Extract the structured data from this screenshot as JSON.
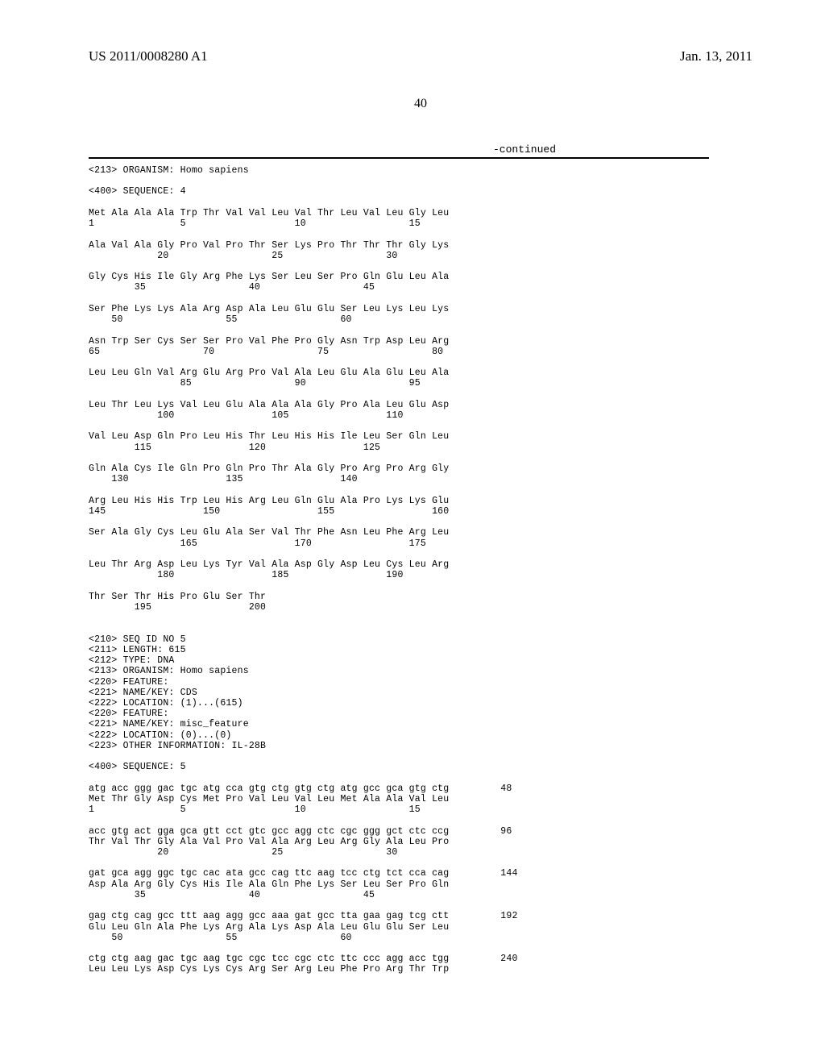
{
  "header": {
    "pub_number": "US 2011/0008280 A1",
    "pub_date": "Jan. 13, 2011"
  },
  "page_number": "40",
  "continued_label": "-continued",
  "seq4": {
    "meta": "<213> ORGANISM: Homo sapiens\n\n<400> SEQUENCE: 4",
    "rows": [
      {
        "aa": "Met Ala Ala Ala Trp Thr Val Val Leu Val Thr Leu Val Leu Gly Leu",
        "num": "1               5                   10                  15"
      },
      {
        "aa": "Ala Val Ala Gly Pro Val Pro Thr Ser Lys Pro Thr Thr Thr Gly Lys",
        "num": "            20                  25                  30"
      },
      {
        "aa": "Gly Cys His Ile Gly Arg Phe Lys Ser Leu Ser Pro Gln Glu Leu Ala",
        "num": "        35                  40                  45"
      },
      {
        "aa": "Ser Phe Lys Lys Ala Arg Asp Ala Leu Glu Glu Ser Leu Lys Leu Lys",
        "num": "    50                  55                  60"
      },
      {
        "aa": "Asn Trp Ser Cys Ser Ser Pro Val Phe Pro Gly Asn Trp Asp Leu Arg",
        "num": "65                  70                  75                  80"
      },
      {
        "aa": "Leu Leu Gln Val Arg Glu Arg Pro Val Ala Leu Glu Ala Glu Leu Ala",
        "num": "                85                  90                  95"
      },
      {
        "aa": "Leu Thr Leu Lys Val Leu Glu Ala Ala Ala Gly Pro Ala Leu Glu Asp",
        "num": "            100                 105                 110"
      },
      {
        "aa": "Val Leu Asp Gln Pro Leu His Thr Leu His His Ile Leu Ser Gln Leu",
        "num": "        115                 120                 125"
      },
      {
        "aa": "Gln Ala Cys Ile Gln Pro Gln Pro Thr Ala Gly Pro Arg Pro Arg Gly",
        "num": "    130                 135                 140"
      },
      {
        "aa": "Arg Leu His His Trp Leu His Arg Leu Gln Glu Ala Pro Lys Lys Glu",
        "num": "145                 150                 155                 160"
      },
      {
        "aa": "Ser Ala Gly Cys Leu Glu Ala Ser Val Thr Phe Asn Leu Phe Arg Leu",
        "num": "                165                 170                 175"
      },
      {
        "aa": "Leu Thr Arg Asp Leu Lys Tyr Val Ala Asp Gly Asp Leu Cys Leu Arg",
        "num": "            180                 185                 190"
      },
      {
        "aa": "Thr Ser Thr His Pro Glu Ser Thr",
        "num": "        195                 200"
      }
    ]
  },
  "seq5": {
    "meta": "<210> SEQ ID NO 5\n<211> LENGTH: 615\n<212> TYPE: DNA\n<213> ORGANISM: Homo sapiens\n<220> FEATURE:\n<221> NAME/KEY: CDS\n<222> LOCATION: (1)...(615)\n<220> FEATURE:\n<221> NAME/KEY: misc_feature\n<222> LOCATION: (0)...(0)\n<223> OTHER INFORMATION: IL-28B\n\n<400> SEQUENCE: 5",
    "rows": [
      {
        "dna": "atg acc ggg gac tgc atg cca gtg ctg gtg ctg atg gcc gca gtg ctg",
        "pos": "48",
        "aa": "Met Thr Gly Asp Cys Met Pro Val Leu Val Leu Met Ala Ala Val Leu",
        "num": "1               5                   10                  15"
      },
      {
        "dna": "acc gtg act gga gca gtt cct gtc gcc agg ctc cgc ggg gct ctc ccg",
        "pos": "96",
        "aa": "Thr Val Thr Gly Ala Val Pro Val Ala Arg Leu Arg Gly Ala Leu Pro",
        "num": "            20                  25                  30"
      },
      {
        "dna": "gat gca agg ggc tgc cac ata gcc cag ttc aag tcc ctg tct cca cag",
        "pos": "144",
        "aa": "Asp Ala Arg Gly Cys His Ile Ala Gln Phe Lys Ser Leu Ser Pro Gln",
        "num": "        35                  40                  45"
      },
      {
        "dna": "gag ctg cag gcc ttt aag agg gcc aaa gat gcc tta gaa gag tcg ctt",
        "pos": "192",
        "aa": "Glu Leu Gln Ala Phe Lys Arg Ala Lys Asp Ala Leu Glu Glu Ser Leu",
        "num": "    50                  55                  60"
      },
      {
        "dna": "ctg ctg aag gac tgc aag tgc cgc tcc cgc ctc ttc ccc agg acc tgg",
        "pos": "240",
        "aa": "Leu Leu Lys Asp Cys Lys Cys Arg Ser Arg Leu Phe Pro Arg Thr Trp",
        "num": ""
      }
    ]
  }
}
